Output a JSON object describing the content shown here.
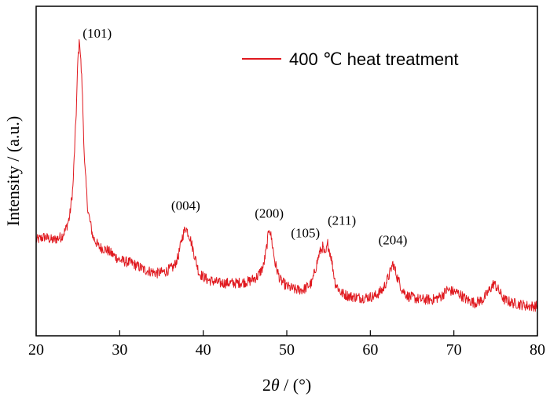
{
  "chart_data": {
    "type": "line",
    "title": "",
    "xlabel_main": "2",
    "xlabel_theta": "θ",
    "xlabel_rest": " / (°)",
    "ylabel": "Intensity / (a.u.)",
    "xlim": [
      20,
      80
    ],
    "ylim": [
      0,
      100
    ],
    "xticks": [
      20,
      30,
      40,
      50,
      60,
      70,
      80
    ],
    "yticks_shown": false,
    "grid": false,
    "legend_position": "top-right",
    "series": [
      {
        "name": "400 ℃ heat treatment",
        "color": "#e0191f",
        "x": [
          20,
          21,
          22,
          23,
          23.5,
          24,
          24.4,
          24.8,
          25,
          25.2,
          25.5,
          25.8,
          26.2,
          26.8,
          27.5,
          28.5,
          30,
          31.5,
          33,
          34.5,
          35.5,
          36.5,
          37,
          37.5,
          37.9,
          38.4,
          38.9,
          39.5,
          40.5,
          42,
          44,
          45.5,
          46.5,
          47.2,
          47.6,
          47.9,
          48.2,
          48.6,
          49.2,
          50,
          51,
          52,
          53,
          53.5,
          53.9,
          54.3,
          54.6,
          54.9,
          55.3,
          55.8,
          56.5,
          57.5,
          59,
          60.5,
          61.5,
          62.2,
          62.7,
          63.2,
          63.8,
          64.5,
          66,
          67.5,
          68.5,
          69.2,
          69.8,
          70.5,
          71.5,
          72.5,
          73.5,
          74.3,
          74.8,
          75.3,
          76,
          77,
          78,
          79,
          80
        ],
        "y": [
          29,
          30,
          29,
          30,
          32,
          36,
          45,
          68,
          84,
          90,
          76,
          52,
          38,
          30,
          27,
          26,
          23,
          22,
          20,
          19,
          19.5,
          21,
          24,
          30,
          33,
          30,
          25,
          19,
          17,
          16,
          16,
          16.5,
          18,
          21,
          27,
          33,
          29,
          22,
          17,
          15,
          14,
          14,
          16,
          21,
          25,
          27,
          24,
          28,
          24,
          16,
          13,
          12,
          11.5,
          12,
          14,
          18,
          22,
          18,
          14,
          12,
          11,
          11,
          12,
          14,
          13.5,
          13,
          11,
          10,
          11,
          14,
          16,
          14,
          11,
          10,
          9.5,
          9,
          9
        ]
      }
    ],
    "annotations": [
      {
        "text": "(101)",
        "x": 25.2,
        "y": 90
      },
      {
        "text": "(004)",
        "x": 37.9,
        "y": 33
      },
      {
        "text": "(200)",
        "x": 47.9,
        "y": 33
      },
      {
        "text": "(105)",
        "x": 54.3,
        "y": 27
      },
      {
        "text": "(211)",
        "x": 54.9,
        "y": 28
      },
      {
        "text": "(204)",
        "x": 62.7,
        "y": 22
      }
    ]
  }
}
